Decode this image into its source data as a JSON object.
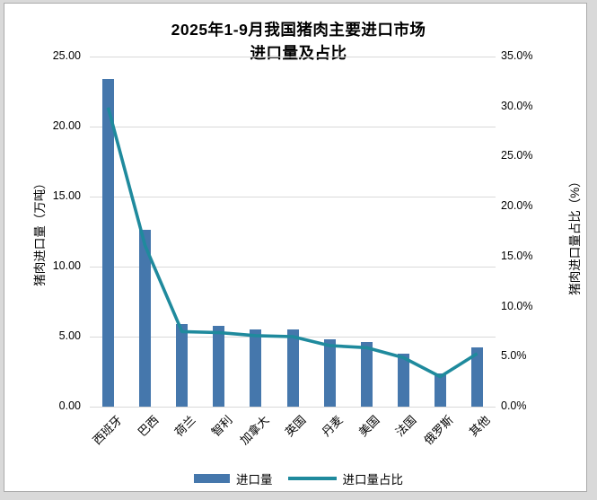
{
  "chart_data": {
    "type": "bar+line",
    "title_line1": "2025年1-9月我国猪肉主要进口市场",
    "title_line2": "进口量及占比",
    "categories": [
      "西班牙",
      "巴西",
      "荷兰",
      "智利",
      "加拿大",
      "英国",
      "丹麦",
      "美国",
      "法国",
      "俄罗斯",
      "其他"
    ],
    "series": [
      {
        "name": "进口量",
        "type": "bar",
        "axis": "left",
        "unit": "万吨",
        "color": "#4577ac",
        "values": [
          23.4,
          12.6,
          5.9,
          5.8,
          5.5,
          5.5,
          4.8,
          4.6,
          3.8,
          2.4,
          4.2
        ]
      },
      {
        "name": "进口量占比",
        "type": "line",
        "axis": "right",
        "unit": "%",
        "color": "#1f8a9d",
        "values": [
          29.9,
          16.1,
          7.5,
          7.4,
          7.1,
          7.0,
          6.1,
          5.9,
          4.9,
          3.0,
          5.3
        ]
      }
    ],
    "left_axis": {
      "title": "猪肉进口量（万吨）",
      "min": 0,
      "max": 25,
      "tick_step": 5,
      "tick_labels": [
        "0.00",
        "5.00",
        "10.00",
        "15.00",
        "20.00",
        "25.00"
      ]
    },
    "right_axis": {
      "title": "猪肉进口量占比（%）",
      "min": 0,
      "max": 35,
      "tick_step": 5,
      "tick_labels": [
        "0.0%",
        "5.0%",
        "10.0%",
        "15.0%",
        "20.0%",
        "25.0%",
        "30.0%",
        "35.0%"
      ]
    },
    "grid": true,
    "legend_position": "bottom"
  },
  "colors": {
    "bar": "#4577ac",
    "line": "#1f8a9d",
    "grid": "#d9d9d9",
    "text": "#000000",
    "page_background": "#d9d9d9",
    "chart_background": "#ffffff",
    "chart_border": "#ababab"
  }
}
